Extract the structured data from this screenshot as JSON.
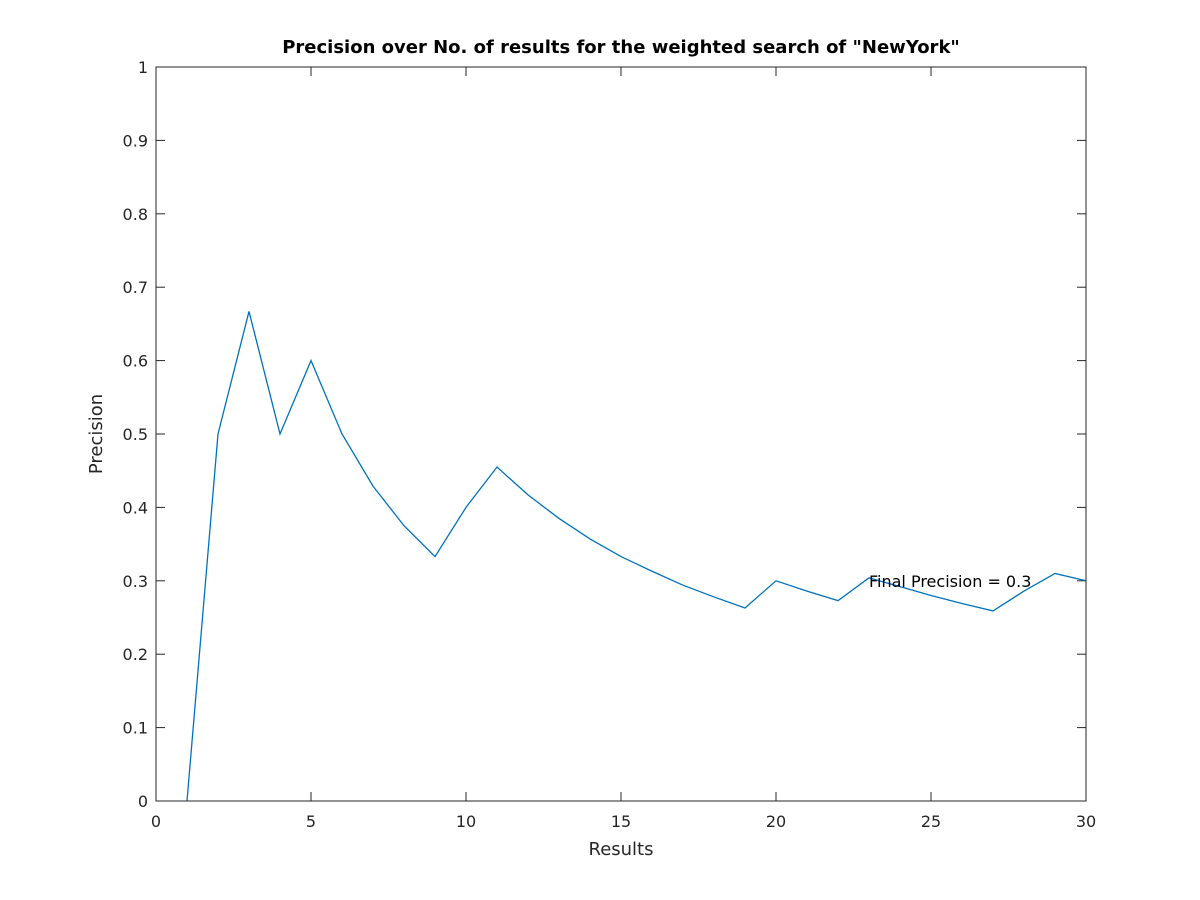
{
  "chart_data": {
    "type": "line",
    "title": "Precision over No. of results for the weighted search of \"NewYork\"",
    "xlabel": "Results",
    "ylabel": "Precision",
    "xlim": [
      0,
      30
    ],
    "ylim": [
      0,
      1
    ],
    "x_ticks": [
      "0",
      "5",
      "10",
      "15",
      "20",
      "25",
      "30"
    ],
    "y_ticks": [
      "0",
      "0.1",
      "0.2",
      "0.3",
      "0.4",
      "0.5",
      "0.6",
      "0.7",
      "0.8",
      "0.9",
      "1"
    ],
    "grid": false,
    "legend": "none",
    "series": [
      {
        "color": "#0072bd",
        "x": [
          1,
          2,
          3,
          4,
          5,
          6,
          7,
          8,
          9,
          10,
          11,
          12,
          13,
          14,
          15,
          16,
          17,
          18,
          19,
          20,
          21,
          22,
          23,
          24,
          25,
          26,
          27,
          28,
          29,
          30
        ],
        "y": [
          0,
          0.5,
          0.667,
          0.5,
          0.6,
          0.5,
          0.429,
          0.375,
          0.333,
          0.4,
          0.455,
          0.417,
          0.385,
          0.357,
          0.333,
          0.313,
          0.294,
          0.278,
          0.263,
          0.3,
          0.286,
          0.273,
          0.304,
          0.292,
          0.28,
          0.269,
          0.259,
          0.286,
          0.31,
          0.3
        ]
      }
    ],
    "annotations": [
      {
        "text": "Final Precision = 0.3",
        "x": 23,
        "y": 0.3
      }
    ]
  }
}
